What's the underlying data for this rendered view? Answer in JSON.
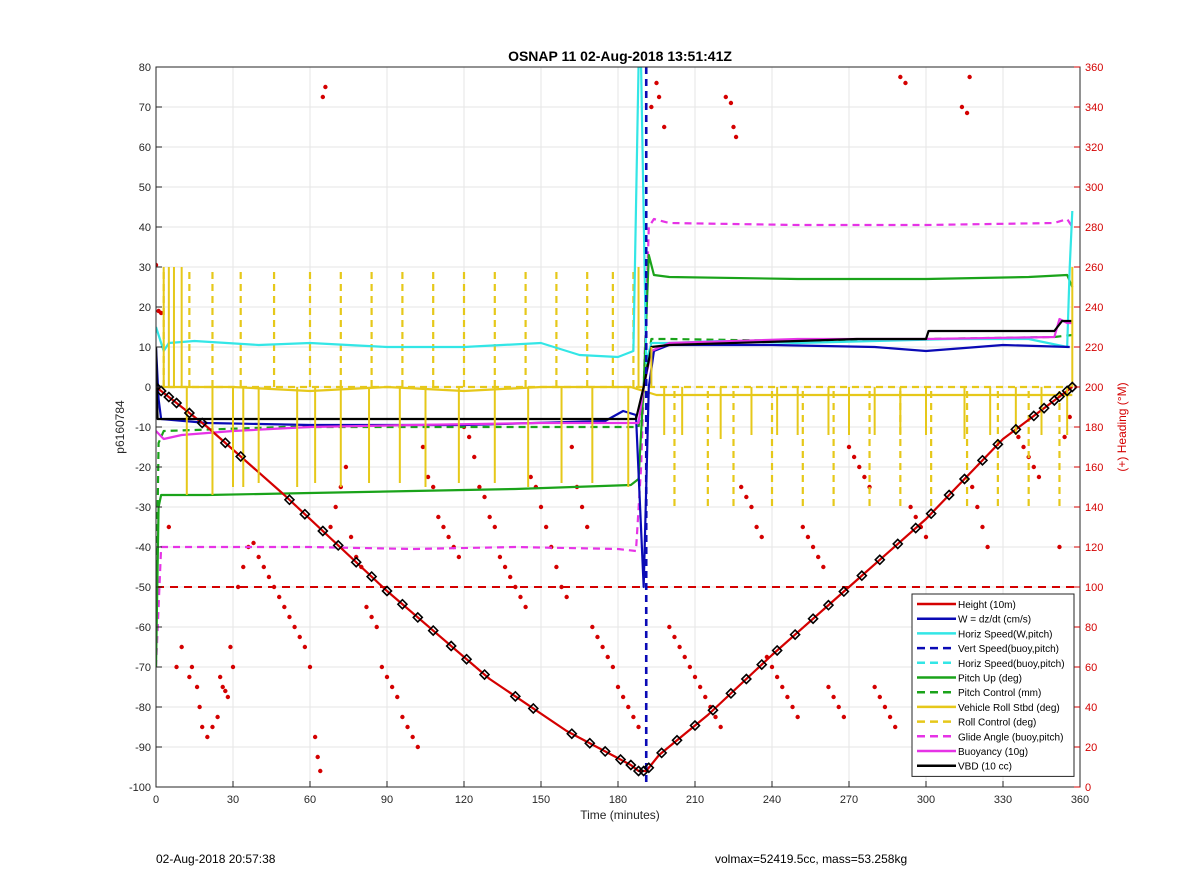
{
  "chart_data": {
    "type": "line",
    "title": "OSNAP 11 02-Aug-2018 13:51:41Z",
    "xlabel": "Time (minutes)",
    "ylabel": "p6160784",
    "y2label": "(+) Heading (°M)",
    "xlim": [
      0,
      360
    ],
    "ylim": [
      -100,
      80
    ],
    "y2lim": [
      0,
      360
    ],
    "xticks": [
      "0",
      "30",
      "60",
      "90",
      "120",
      "150",
      "180",
      "210",
      "240",
      "270",
      "300",
      "330",
      "360"
    ],
    "yticks": [
      "80",
      "70",
      "60",
      "50",
      "40",
      "30",
      "20",
      "10",
      "0",
      "-10",
      "-20",
      "-30",
      "-40",
      "-50",
      "-60",
      "-70",
      "-80",
      "-90",
      "-100"
    ],
    "y2ticks": [
      "360",
      "340",
      "320",
      "300",
      "280",
      "260",
      "240",
      "220",
      "200",
      "180",
      "160",
      "140",
      "120",
      "100",
      "80",
      "60",
      "40",
      "20",
      "0"
    ],
    "legend_location": "bottom-right",
    "legend": [
      {
        "label": "Height (10m)",
        "color": "#d40000",
        "dash": "solid"
      },
      {
        "label": "W = dz/dt (cm/s)",
        "color": "#0a0ab5",
        "dash": "solid"
      },
      {
        "label": "Horiz Speed(W,pitch)",
        "color": "#33e6e6",
        "dash": "solid"
      },
      {
        "label": "Vert Speed(buoy,pitch)",
        "color": "#0a0ab5",
        "dash": "dashed"
      },
      {
        "label": "Horiz Speed(buoy,pitch)",
        "color": "#33e6e6",
        "dash": "dashed"
      },
      {
        "label": "Pitch Up (deg)",
        "color": "#1aa31a",
        "dash": "solid"
      },
      {
        "label": "Pitch Control (mm)",
        "color": "#1aa31a",
        "dash": "dashed"
      },
      {
        "label": "Vehicle Roll Stbd (deg)",
        "color": "#e6c81a",
        "dash": "solid"
      },
      {
        "label": "Roll Control (deg)",
        "color": "#e6c81a",
        "dash": "dashed"
      },
      {
        "label": "Glide Angle (buoy,pitch)",
        "color": "#e633e6",
        "dash": "dashed"
      },
      {
        "label": "Buoyancy (10g)",
        "color": "#e633e6",
        "dash": "solid"
      },
      {
        "label": "VBD (10 cc)",
        "color": "#000000",
        "dash": "solid"
      }
    ],
    "series": [
      {
        "name": "Height (10m)",
        "color": "#d40000",
        "x": [
          0,
          20,
          50,
          90,
          130,
          160,
          185,
          188,
          191,
          196,
          215,
          240,
          270,
          300,
          330,
          357
        ],
        "y": [
          0,
          -10,
          -27,
          -51,
          -73,
          -86,
          -94.5,
          -96,
          -96,
          -92,
          -82,
          -67,
          -50,
          -33,
          -13,
          0
        ]
      },
      {
        "name": "W = dz/dt (cm/s)",
        "color": "#0a0ab5",
        "x": [
          0,
          1,
          2,
          20,
          60,
          120,
          175,
          182,
          187,
          190,
          192,
          194,
          200,
          240,
          280,
          300,
          330,
          356
        ],
        "y": [
          10,
          -3,
          -8,
          -9,
          -9.5,
          -9.5,
          -8.5,
          -6,
          -7,
          -50,
          0,
          9,
          10.5,
          10.5,
          10,
          9,
          10.5,
          10
        ]
      },
      {
        "name": "Horiz Speed(W,pitch)",
        "color": "#33e6e6",
        "x": [
          0,
          3,
          5,
          15,
          40,
          60,
          90,
          120,
          150,
          165,
          180,
          186,
          188,
          189,
          191,
          193,
          200,
          220,
          250,
          280,
          310,
          340,
          355,
          356,
          357
        ],
        "y": [
          15,
          9,
          11,
          11.5,
          10.5,
          11,
          10,
          10,
          11,
          8,
          7.5,
          9,
          80,
          80,
          6,
          11,
          11,
          11.5,
          11,
          11.5,
          12,
          12,
          10,
          30,
          44
        ]
      },
      {
        "name": "Vert Speed(buoy,pitch)",
        "color": "#0a0ab5",
        "x": [
          191,
          191
        ],
        "y": [
          80,
          -100
        ]
      },
      {
        "name": "Pitch Up (deg)",
        "color": "#1aa31a",
        "x": [
          0,
          1,
          2,
          20,
          60,
          100,
          140,
          185,
          188,
          190,
          192,
          194,
          200,
          250,
          300,
          340,
          355,
          357
        ],
        "y": [
          -70,
          -30,
          -27,
          -27,
          -26.5,
          -26,
          -25.5,
          -24.5,
          -23,
          0,
          33,
          28,
          27.5,
          27,
          27,
          27.5,
          28,
          25
        ]
      },
      {
        "name": "Pitch Control (mm)",
        "color": "#1aa31a",
        "x": [
          0,
          1,
          3,
          50,
          100,
          150,
          188,
          190,
          193,
          200,
          250,
          300,
          350,
          357
        ],
        "y": [
          -60,
          -14,
          -11,
          -10,
          -10,
          -10,
          -10,
          0,
          12,
          12,
          11.5,
          12,
          12.5,
          13
        ]
      },
      {
        "name": "Vehicle Roll Stbd (deg)",
        "color": "#e6c81a",
        "x": [
          0,
          10,
          30,
          60,
          90,
          120,
          150,
          185,
          195,
          230,
          270,
          310,
          357
        ],
        "y": [
          0,
          0,
          0,
          -1,
          0,
          -1,
          0,
          0,
          -2,
          -2,
          -2,
          -2,
          -2
        ]
      },
      {
        "name": "Roll Control (deg)",
        "color": "#e6c81a",
        "x": [
          0,
          357
        ],
        "y": [
          0,
          0
        ]
      },
      {
        "name": "Glide Angle (buoy,pitch)",
        "color": "#e633e6",
        "x": [
          0,
          2,
          4,
          30,
          60,
          100,
          140,
          180,
          187,
          189,
          192,
          194,
          200,
          250,
          300,
          350,
          355,
          357
        ],
        "y": [
          -70,
          -40,
          -40,
          -40,
          -40,
          -40.5,
          -40,
          -40.5,
          -41,
          -20,
          40,
          42,
          41,
          40.5,
          40.5,
          41,
          42,
          40
        ]
      },
      {
        "name": "Buoyancy (10g)",
        "color": "#e633e6",
        "x": [
          0,
          3,
          10,
          30,
          60,
          100,
          150,
          188,
          190,
          193,
          200,
          250,
          300,
          350,
          352,
          355,
          357
        ],
        "y": [
          -11,
          -13,
          -12,
          -11,
          -10,
          -9.5,
          -9,
          -9,
          0,
          9,
          11,
          12,
          12,
          12.5,
          17,
          16,
          16
        ]
      },
      {
        "name": "VBD (10 cc)",
        "color": "#000000",
        "x": [
          0,
          0.3,
          0.6,
          1,
          185,
          187,
          190,
          193,
          200,
          250,
          273,
          274,
          300,
          301,
          350,
          353,
          357
        ],
        "y": [
          10,
          0,
          -8,
          -8,
          -8,
          -8,
          0,
          10,
          10.5,
          11.5,
          12,
          12,
          12,
          14,
          14,
          16.5,
          16.5
        ]
      }
    ],
    "horizontal_reference": {
      "y": -50,
      "color": "#d40000",
      "dash": "dashed"
    },
    "roll_spikes": {
      "roll_solid_up_x": [
        3,
        5,
        7,
        10,
        188,
        193,
        357
      ],
      "roll_solid_up_to": [
        30,
        30,
        30,
        30,
        30,
        10,
        30
      ],
      "roll_solid_down_x": [
        12,
        22,
        30,
        34,
        40,
        55,
        62,
        72,
        83,
        95,
        105,
        118,
        132,
        145,
        158,
        170,
        184,
        198,
        205,
        220,
        232,
        242,
        250,
        262,
        270,
        280,
        290,
        300,
        315,
        325,
        335,
        345,
        355
      ],
      "roll_solid_down_to": [
        -27,
        -27,
        -25,
        -25,
        -24,
        -25,
        -24,
        -25,
        -24,
        -24,
        -25,
        -24,
        -24,
        -25,
        -24,
        -24,
        -25,
        -12,
        -12,
        -13,
        -12,
        -12,
        -12,
        -12,
        -12,
        -12,
        -12,
        -12,
        -13,
        -12,
        -12,
        -12,
        -12
      ],
      "roll_dashed_up_x": [
        3,
        13,
        22,
        33,
        46,
        60,
        72,
        84,
        96,
        108,
        120,
        132,
        144,
        156,
        168,
        178,
        186
      ],
      "roll_dashed_up_to": [
        30,
        30,
        30,
        30,
        30,
        30,
        30,
        30,
        30,
        30,
        30,
        30,
        30,
        30,
        30,
        30,
        30
      ],
      "roll_dashed_down_x": [
        202,
        215,
        225,
        240,
        252,
        264,
        278,
        290,
        302,
        316,
        328,
        340,
        352
      ],
      "roll_dashed_down_to": [
        -30,
        -30,
        -30,
        -30,
        -30,
        -30,
        -30,
        -30,
        -30,
        -30,
        -30,
        -30,
        -30
      ]
    },
    "vbd_markers_x": [
      0,
      2,
      5,
      8,
      13,
      18,
      27,
      33,
      52,
      58,
      65,
      71,
      78,
      84,
      90,
      96,
      102,
      108,
      115,
      121,
      128,
      140,
      147,
      162,
      169,
      175,
      181,
      185,
      188,
      190,
      192,
      197,
      203,
      210,
      217,
      224,
      230,
      236,
      242,
      249,
      256,
      262,
      268,
      275,
      282,
      289,
      296,
      302,
      309,
      315,
      322,
      328,
      335,
      342,
      346,
      350,
      352,
      355,
      357
    ],
    "heading_points": [
      [
        0,
        261
      ],
      [
        1,
        238
      ],
      [
        2,
        237
      ],
      [
        5,
        130
      ],
      [
        8,
        60
      ],
      [
        10,
        70
      ],
      [
        13,
        55
      ],
      [
        14,
        60
      ],
      [
        16,
        50
      ],
      [
        17,
        40
      ],
      [
        18,
        30
      ],
      [
        20,
        25
      ],
      [
        22,
        30
      ],
      [
        24,
        35
      ],
      [
        25,
        55
      ],
      [
        26,
        50
      ],
      [
        27,
        48
      ],
      [
        28,
        45
      ],
      [
        29,
        70
      ],
      [
        30,
        60
      ],
      [
        32,
        100
      ],
      [
        34,
        110
      ],
      [
        36,
        120
      ],
      [
        38,
        122
      ],
      [
        40,
        115
      ],
      [
        42,
        110
      ],
      [
        44,
        105
      ],
      [
        46,
        100
      ],
      [
        48,
        95
      ],
      [
        50,
        90
      ],
      [
        52,
        85
      ],
      [
        54,
        80
      ],
      [
        56,
        75
      ],
      [
        58,
        70
      ],
      [
        60,
        60
      ],
      [
        62,
        25
      ],
      [
        63,
        15
      ],
      [
        64,
        8
      ],
      [
        65,
        345
      ],
      [
        66,
        350
      ],
      [
        68,
        130
      ],
      [
        70,
        140
      ],
      [
        72,
        150
      ],
      [
        74,
        160
      ],
      [
        76,
        125
      ],
      [
        78,
        115
      ],
      [
        80,
        110
      ],
      [
        82,
        90
      ],
      [
        84,
        85
      ],
      [
        86,
        80
      ],
      [
        88,
        60
      ],
      [
        90,
        55
      ],
      [
        92,
        50
      ],
      [
        94,
        45
      ],
      [
        96,
        35
      ],
      [
        98,
        30
      ],
      [
        100,
        25
      ],
      [
        102,
        20
      ],
      [
        104,
        170
      ],
      [
        106,
        155
      ],
      [
        108,
        150
      ],
      [
        110,
        135
      ],
      [
        112,
        130
      ],
      [
        114,
        125
      ],
      [
        116,
        120
      ],
      [
        118,
        115
      ],
      [
        120,
        180
      ],
      [
        122,
        175
      ],
      [
        124,
        165
      ],
      [
        126,
        150
      ],
      [
        128,
        145
      ],
      [
        130,
        135
      ],
      [
        132,
        130
      ],
      [
        134,
        115
      ],
      [
        136,
        110
      ],
      [
        138,
        105
      ],
      [
        140,
        100
      ],
      [
        142,
        95
      ],
      [
        144,
        90
      ],
      [
        146,
        155
      ],
      [
        148,
        150
      ],
      [
        150,
        140
      ],
      [
        152,
        130
      ],
      [
        154,
        120
      ],
      [
        156,
        110
      ],
      [
        158,
        100
      ],
      [
        160,
        95
      ],
      [
        162,
        170
      ],
      [
        164,
        150
      ],
      [
        166,
        140
      ],
      [
        168,
        130
      ],
      [
        170,
        80
      ],
      [
        172,
        75
      ],
      [
        174,
        70
      ],
      [
        176,
        65
      ],
      [
        178,
        60
      ],
      [
        180,
        50
      ],
      [
        182,
        45
      ],
      [
        184,
        40
      ],
      [
        186,
        35
      ],
      [
        188,
        30
      ],
      [
        193,
        340
      ],
      [
        195,
        352
      ],
      [
        196,
        345
      ],
      [
        198,
        330
      ],
      [
        200,
        80
      ],
      [
        202,
        75
      ],
      [
        204,
        70
      ],
      [
        206,
        65
      ],
      [
        208,
        60
      ],
      [
        210,
        55
      ],
      [
        212,
        50
      ],
      [
        214,
        45
      ],
      [
        216,
        40
      ],
      [
        218,
        35
      ],
      [
        220,
        30
      ],
      [
        222,
        345
      ],
      [
        224,
        342
      ],
      [
        225,
        330
      ],
      [
        226,
        325
      ],
      [
        228,
        150
      ],
      [
        230,
        145
      ],
      [
        232,
        140
      ],
      [
        234,
        130
      ],
      [
        236,
        125
      ],
      [
        238,
        65
      ],
      [
        240,
        60
      ],
      [
        242,
        55
      ],
      [
        244,
        50
      ],
      [
        246,
        45
      ],
      [
        248,
        40
      ],
      [
        250,
        35
      ],
      [
        252,
        130
      ],
      [
        254,
        125
      ],
      [
        256,
        120
      ],
      [
        258,
        115
      ],
      [
        260,
        110
      ],
      [
        262,
        50
      ],
      [
        264,
        45
      ],
      [
        266,
        40
      ],
      [
        268,
        35
      ],
      [
        270,
        170
      ],
      [
        272,
        165
      ],
      [
        274,
        160
      ],
      [
        276,
        155
      ],
      [
        278,
        150
      ],
      [
        280,
        50
      ],
      [
        282,
        45
      ],
      [
        284,
        40
      ],
      [
        286,
        35
      ],
      [
        288,
        30
      ],
      [
        290,
        355
      ],
      [
        292,
        352
      ],
      [
        294,
        140
      ],
      [
        296,
        135
      ],
      [
        298,
        130
      ],
      [
        300,
        125
      ],
      [
        302,
        75
      ],
      [
        304,
        70
      ],
      [
        306,
        65
      ],
      [
        308,
        60
      ],
      [
        310,
        55
      ],
      [
        312,
        50
      ],
      [
        314,
        340
      ],
      [
        316,
        337
      ],
      [
        317,
        355
      ],
      [
        318,
        150
      ],
      [
        320,
        140
      ],
      [
        322,
        130
      ],
      [
        324,
        120
      ],
      [
        326,
        65
      ],
      [
        328,
        60
      ],
      [
        330,
        55
      ],
      [
        332,
        50
      ],
      [
        334,
        45
      ],
      [
        336,
        175
      ],
      [
        338,
        170
      ],
      [
        340,
        165
      ],
      [
        342,
        160
      ],
      [
        344,
        155
      ],
      [
        346,
        60
      ],
      [
        348,
        55
      ],
      [
        350,
        50
      ],
      [
        352,
        120
      ],
      [
        354,
        175
      ],
      [
        356,
        185
      ]
    ]
  },
  "footer": {
    "left": "02-Aug-2018 20:57:38",
    "right": "volmax=52419.5cc, mass=53.258kg"
  }
}
